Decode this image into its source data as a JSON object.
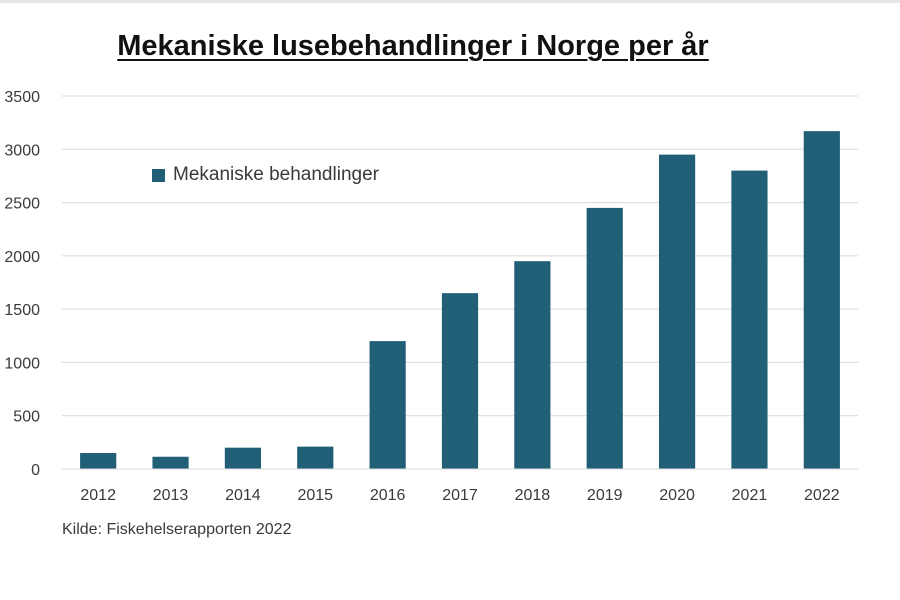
{
  "chart_data": {
    "type": "bar",
    "title": "Mekaniske lusebehandlinger i Norge per år",
    "categories": [
      "2012",
      "2013",
      "2014",
      "2015",
      "2016",
      "2017",
      "2018",
      "2019",
      "2020",
      "2021",
      "2022"
    ],
    "series": [
      {
        "name": "Mekaniske behandlinger",
        "values": [
          150,
          115,
          200,
          210,
          1200,
          1650,
          1950,
          2450,
          2950,
          2800,
          3170
        ],
        "color": "#215f76"
      }
    ],
    "yticks": [
      "0",
      "500",
      "1000",
      "1500",
      "2000",
      "2500",
      "3000",
      "3500"
    ],
    "ylim": [
      0,
      3500
    ],
    "xlabel": "",
    "ylabel": "",
    "grid": true,
    "legend_position": "top-left",
    "source": "Kilde: Fiskehelserapporten 2022"
  }
}
